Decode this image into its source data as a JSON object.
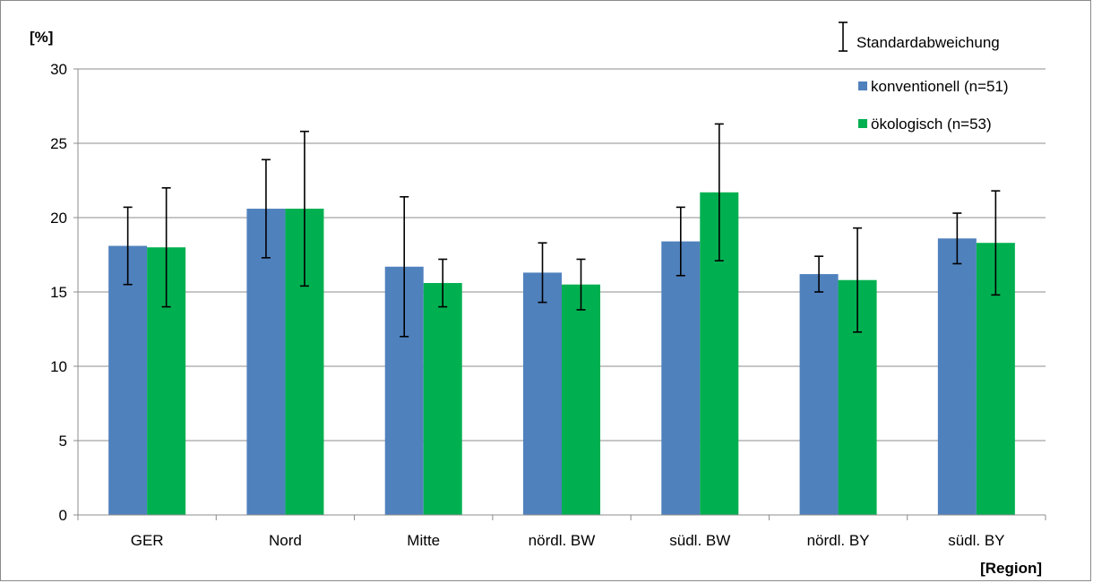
{
  "chart_data": {
    "type": "bar",
    "ylabel": "[%]",
    "xlabel": "[Region]",
    "ylim": [
      0,
      30
    ],
    "yticks": [
      0,
      5,
      10,
      15,
      20,
      25,
      30
    ],
    "grid": true,
    "legend_position": "top-right",
    "error_bar_label": "Standardabweichung",
    "categories": [
      "GER",
      "Nord",
      "Mitte",
      "nördl. BW",
      "südl. BW",
      "nördl. BY",
      "südl. BY"
    ],
    "series": [
      {
        "name": "konventionell (n=51)",
        "color": "#4f81bd",
        "values": [
          18.1,
          20.6,
          16.7,
          16.3,
          18.4,
          16.2,
          18.6
        ],
        "std": [
          2.6,
          3.3,
          4.7,
          2.0,
          2.3,
          1.2,
          1.7
        ]
      },
      {
        "name": "ökologisch (n=53)",
        "color": "#00b050",
        "values": [
          18.0,
          20.6,
          15.6,
          15.5,
          21.7,
          15.8,
          18.3
        ],
        "std": [
          4.0,
          5.2,
          1.6,
          1.7,
          4.6,
          3.5,
          3.5
        ]
      }
    ]
  }
}
